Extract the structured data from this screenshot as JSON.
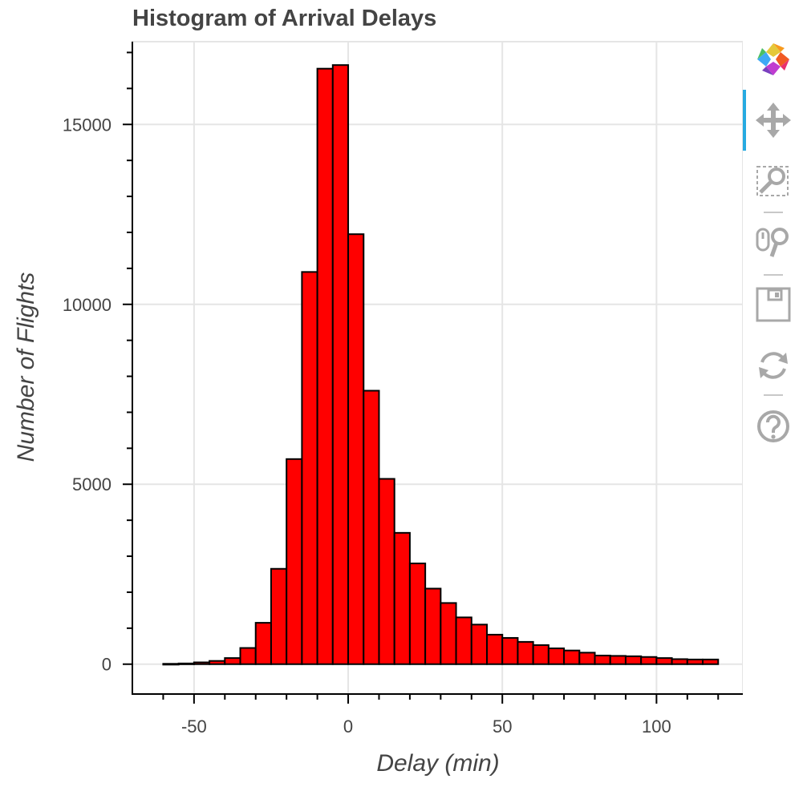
{
  "chart_data": {
    "type": "bar",
    "title": "Histogram of Arrival Delays",
    "xlabel": "Delay (min)",
    "ylabel": "Number of Flights",
    "xlim": [
      -70,
      128
    ],
    "ylim": [
      -830,
      17300
    ],
    "x_ticks": [
      -50,
      0,
      50,
      100
    ],
    "y_ticks": [
      0,
      5000,
      10000,
      15000
    ],
    "x_tick_labels": [
      "-50",
      "0",
      "50",
      "100"
    ],
    "y_tick_labels": [
      "0",
      "5000",
      "10000",
      "15000"
    ],
    "bin_width": 5,
    "bins": [
      {
        "x0": -60,
        "x1": -55,
        "count": 10
      },
      {
        "x0": -55,
        "x1": -50,
        "count": 20
      },
      {
        "x0": -50,
        "x1": -45,
        "count": 50
      },
      {
        "x0": -45,
        "x1": -40,
        "count": 90
      },
      {
        "x0": -40,
        "x1": -35,
        "count": 170
      },
      {
        "x0": -35,
        "x1": -30,
        "count": 450
      },
      {
        "x0": -30,
        "x1": -25,
        "count": 1150
      },
      {
        "x0": -25,
        "x1": -20,
        "count": 2650
      },
      {
        "x0": -20,
        "x1": -15,
        "count": 5700
      },
      {
        "x0": -15,
        "x1": -10,
        "count": 10900
      },
      {
        "x0": -10,
        "x1": -5,
        "count": 16550
      },
      {
        "x0": -5,
        "x1": 0,
        "count": 16650
      },
      {
        "x0": 0,
        "x1": 5,
        "count": 11950
      },
      {
        "x0": 5,
        "x1": 10,
        "count": 7600
      },
      {
        "x0": 10,
        "x1": 15,
        "count": 5150
      },
      {
        "x0": 15,
        "x1": 20,
        "count": 3650
      },
      {
        "x0": 20,
        "x1": 25,
        "count": 2800
      },
      {
        "x0": 25,
        "x1": 30,
        "count": 2100
      },
      {
        "x0": 30,
        "x1": 35,
        "count": 1700
      },
      {
        "x0": 35,
        "x1": 40,
        "count": 1300
      },
      {
        "x0": 40,
        "x1": 45,
        "count": 1100
      },
      {
        "x0": 45,
        "x1": 50,
        "count": 820
      },
      {
        "x0": 50,
        "x1": 55,
        "count": 730
      },
      {
        "x0": 55,
        "x1": 60,
        "count": 620
      },
      {
        "x0": 60,
        "x1": 65,
        "count": 530
      },
      {
        "x0": 65,
        "x1": 70,
        "count": 440
      },
      {
        "x0": 70,
        "x1": 75,
        "count": 380
      },
      {
        "x0": 75,
        "x1": 80,
        "count": 320
      },
      {
        "x0": 80,
        "x1": 85,
        "count": 240
      },
      {
        "x0": 85,
        "x1": 90,
        "count": 230
      },
      {
        "x0": 90,
        "x1": 95,
        "count": 220
      },
      {
        "x0": 95,
        "x1": 100,
        "count": 200
      },
      {
        "x0": 100,
        "x1": 105,
        "count": 170
      },
      {
        "x0": 105,
        "x1": 110,
        "count": 140
      },
      {
        "x0": 110,
        "x1": 115,
        "count": 130
      },
      {
        "x0": 115,
        "x1": 120,
        "count": 130
      }
    ],
    "bar_fill": "#ff0000",
    "bar_stroke": "#000000",
    "grid": true,
    "legend": "none"
  },
  "colors": {
    "grid": "#e5e5e5",
    "axis": "#000000",
    "text": "#444444",
    "toolbar_icon": "#a8a8a8",
    "toolbar_active": "#26aae1"
  },
  "toolbar": {
    "tools": [
      {
        "icon": "bokeh-logo-icon",
        "active": false
      },
      {
        "icon": "pan-icon",
        "active": true
      },
      {
        "icon": "box-zoom-icon",
        "active": false
      },
      {
        "icon": "wheel-zoom-icon",
        "active": false
      },
      {
        "icon": "save-icon",
        "active": false
      },
      {
        "icon": "reset-icon",
        "active": false
      },
      {
        "icon": "help-icon",
        "active": false
      }
    ]
  }
}
